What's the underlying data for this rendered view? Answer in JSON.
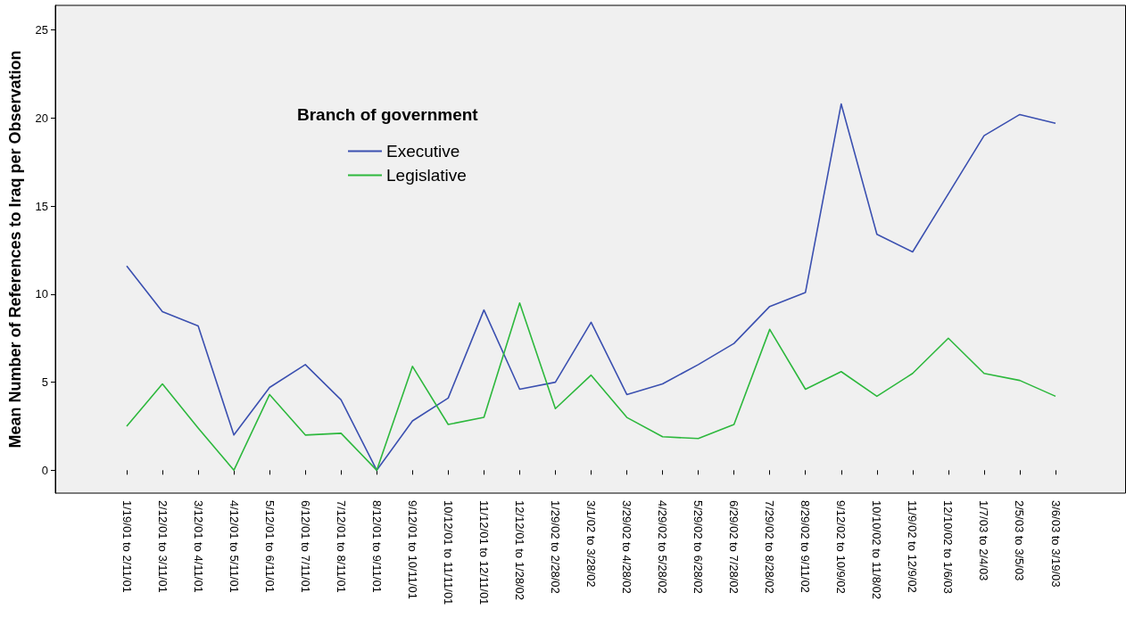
{
  "chart_data": {
    "type": "line",
    "ylabel": "Mean Number of References to Iraq per Observation",
    "legend_title": "Branch of government",
    "legend": "top left",
    "grid": false,
    "marker": "none",
    "line_style": "solid",
    "categories": [
      "1/19/01 to 2/11/01",
      "2/12/01 to 3/11/01",
      "3/12/01 to 4/11/01",
      "4/12/01 to 5/11/01",
      "5/12/01 to 6/11/01",
      "6/12/01 to 7/11/01",
      "7/12/01 to 8/11/01",
      "8/12/01 to 9/11/01",
      "9/12/01 to 10/11/01",
      "10/12/01 to 11/11/01",
      "11/12/01 to 12/11/01",
      "12/12/01 to 1/28/02",
      "1/29/02 to 2/28/02",
      "3/1/02 to 3/28/02",
      "3/29/02 to 4/28/02",
      "4/29/02 to 5/28/02",
      "5/29/02 to 6/28/02",
      "6/29/02 to 7/28/02",
      "7/29/02 to 8/28/02",
      "8/29/02 to 9/11/02",
      "9/12/02 to 10/9/02",
      "10/10/02 to 11/8/02",
      "11/9/02 to 12/9/02",
      "12/10/02 to 1/6/03",
      "1/7/03 to 2/4/03",
      "2/5/03 to 3/5/03",
      "3/6/03 to 3/19/03"
    ],
    "series": [
      {
        "name": "Executive",
        "color": "#3b50b0",
        "values": [
          11.6,
          9.0,
          8.2,
          2.0,
          4.7,
          6.0,
          4.0,
          0,
          2.8,
          4.1,
          9.1,
          4.6,
          5.0,
          8.4,
          4.3,
          4.9,
          6.0,
          7.2,
          9.3,
          10.1,
          20.8,
          13.4,
          12.4,
          15.7,
          19.0,
          20.2,
          19.7
        ]
      },
      {
        "name": "Legislative",
        "color": "#2db83d",
        "values": [
          2.5,
          4.9,
          2.4,
          0,
          4.3,
          2.0,
          2.1,
          0,
          5.9,
          2.6,
          3.0,
          9.5,
          3.5,
          5.4,
          3.0,
          1.9,
          1.8,
          2.6,
          8.0,
          4.6,
          5.6,
          4.2,
          5.5,
          7.5,
          5.5,
          5.1,
          4.2
        ]
      }
    ],
    "ylim": [
      -1.3,
      26.4
    ],
    "yticks": [
      0,
      5,
      10,
      15,
      20,
      25
    ]
  }
}
